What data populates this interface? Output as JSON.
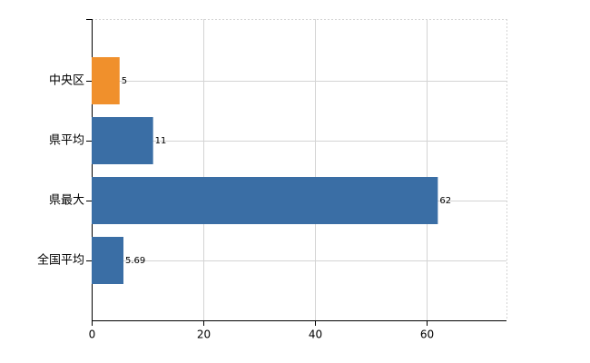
{
  "chart_data": {
    "type": "hbar",
    "categories": [
      "中央区",
      "県平均",
      "県最大",
      "全国平均"
    ],
    "values": [
      5,
      11,
      62,
      5.69
    ],
    "colors": [
      "#f0902c",
      "#3a6ea5",
      "#3a6ea5",
      "#3a6ea5"
    ],
    "xlim": [
      0,
      74.3
    ],
    "xticks": [
      0,
      20,
      40,
      60
    ],
    "grid": true
  }
}
